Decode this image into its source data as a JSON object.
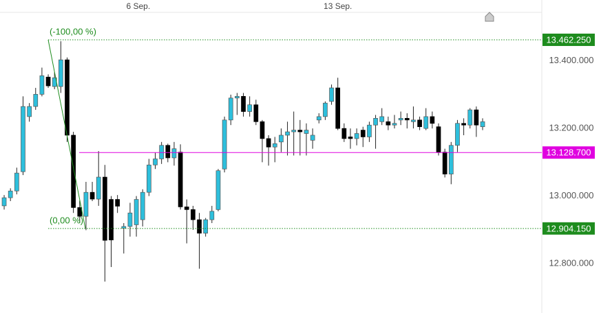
{
  "chart_data": {
    "type": "candlestick",
    "up_color": "#2ebfdc",
    "down_color": "#000000",
    "xlim": [
      -0.66,
      85.4
    ],
    "xticks": [
      {
        "value": 21.3,
        "label": "6 Sep."
      },
      {
        "value": 53,
        "label": "13 Sep."
      }
    ],
    "ylim": [
      12654000,
      13580000
    ],
    "yticks": [
      {
        "value": 12800000,
        "label": "12.800.000"
      },
      {
        "value": 13000000,
        "label": "13.000.000"
      },
      {
        "value": 13200000,
        "label": "13.200.000"
      },
      {
        "value": 13400000,
        "label": "13.400.000"
      }
    ],
    "levels": [
      {
        "value": 13462250,
        "label": "13.462.250",
        "color": "#1e8c1e",
        "style": "dotted",
        "fib_label": "(-100,00 %)"
      },
      {
        "value": 13128700,
        "label": "13.128.700",
        "color": "#e000e0",
        "style": "solid"
      },
      {
        "value": 12904150,
        "label": "12.904.150",
        "color": "#1e8c1e",
        "style": "dotted",
        "fib_label": "(0,00 %)"
      }
    ],
    "open": [
      12971000,
      12995000,
      13015000,
      13072000,
      13235000,
      13265000,
      13301000,
      13352000,
      13324000,
      13324000,
      13403000,
      13180000,
      12966000,
      12940000,
      13011000,
      12991000,
      13056000,
      12990000,
      12990000,
      12905000,
      12910000,
      12915000,
      12930000,
      13011000,
      13092000,
      13110000,
      13150000,
      13113000,
      13130000,
      12968000,
      12960000,
      12930000,
      12890000,
      12930000,
      12960000,
      13080000,
      13225000,
      13290000,
      13295000,
      13250000,
      13270000,
      13220000,
      13170000,
      13145000,
      13160000,
      13180000,
      13190000,
      13195000,
      13185000,
      13165000,
      13225000,
      13235000,
      13280000,
      13320000,
      13200000,
      13175000,
      13170000,
      13195000,
      13175000,
      13210000,
      13220000,
      13220000,
      13210000,
      13225000,
      13230000,
      13220000,
      13225000,
      13200000,
      13235000,
      13205000,
      13130000,
      13065000,
      13150000,
      13215000,
      13210000,
      13255000,
      13205000
    ],
    "high": [
      13003000,
      13023000,
      13084000,
      13295000,
      13275000,
      13320000,
      13380000,
      13360000,
      13366000,
      13458000,
      13410000,
      13190000,
      12987000,
      13042000,
      13042000,
      13133000,
      13092000,
      13000000,
      13003000,
      12920000,
      12980000,
      13000000,
      13020000,
      13110000,
      13128000,
      13160000,
      13155000,
      13160000,
      13153000,
      12990000,
      12971000,
      12950000,
      12935000,
      12971000,
      13080000,
      13235000,
      13300000,
      13305000,
      13305000,
      13295000,
      13285000,
      13225000,
      13180000,
      13175000,
      13200000,
      13220000,
      13250000,
      13225000,
      13215000,
      13200000,
      13245000,
      13280000,
      13330000,
      13350000,
      13215000,
      13200000,
      13200000,
      13205000,
      13220000,
      13240000,
      13260000,
      13235000,
      13240000,
      13250000,
      13245000,
      13265000,
      13235000,
      13260000,
      13250000,
      13215000,
      13140000,
      13160000,
      13225000,
      13230000,
      13260000,
      13265000,
      13230000
    ],
    "low": [
      12960000,
      12985000,
      13005000,
      13062000,
      13220000,
      13255000,
      13295000,
      13320000,
      13316000,
      13305000,
      13160000,
      12950000,
      12920000,
      12899000,
      12985000,
      12971000,
      12747000,
      12790000,
      12950000,
      12830000,
      12880000,
      12880000,
      12910000,
      13000000,
      13080000,
      13095000,
      13100000,
      13090000,
      12960000,
      12860000,
      12900000,
      12785000,
      12880000,
      12920000,
      12955000,
      13070000,
      13210000,
      13240000,
      13235000,
      13235000,
      13210000,
      13100000,
      13090000,
      13100000,
      13130000,
      13120000,
      13120000,
      13120000,
      13120000,
      13140000,
      13215000,
      13225000,
      13270000,
      13195000,
      13160000,
      13140000,
      13150000,
      13145000,
      13160000,
      13140000,
      13210000,
      13195000,
      13200000,
      13210000,
      13200000,
      13200000,
      13195000,
      13195000,
      13200000,
      13120000,
      13055000,
      13035000,
      13130000,
      13180000,
      13200000,
      13175000,
      13195000
    ],
    "close": [
      12995000,
      13015000,
      13068000,
      13265000,
      13265000,
      13301000,
      13356000,
      13326000,
      13350000,
      13403000,
      13180000,
      12966000,
      12940000,
      13011000,
      12991000,
      13056000,
      12869000,
      12870000,
      12970000,
      12910000,
      12950000,
      12990000,
      13011000,
      13092000,
      13110000,
      13150000,
      13113000,
      13140000,
      12968000,
      12960000,
      12930000,
      12890000,
      12930000,
      12955000,
      13075000,
      13225000,
      13290000,
      13295000,
      13250000,
      13270000,
      13220000,
      13170000,
      13145000,
      13155000,
      13180000,
      13190000,
      13195000,
      13190000,
      13195000,
      13180000,
      13235000,
      13275000,
      13320000,
      13200000,
      13170000,
      13170000,
      13185000,
      13175000,
      13210000,
      13230000,
      13235000,
      13210000,
      13215000,
      13230000,
      13225000,
      13225000,
      13205000,
      13235000,
      13215000,
      13130000,
      13065000,
      13150000,
      13215000,
      13210000,
      13255000,
      13210000,
      13220000
    ]
  }
}
